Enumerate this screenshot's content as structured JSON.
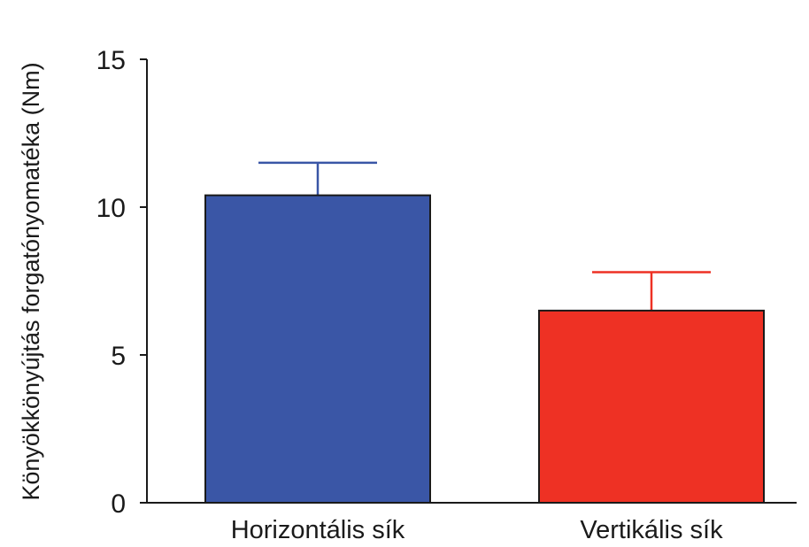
{
  "chart_data": {
    "type": "bar",
    "title": "",
    "xlabel": "",
    "ylabel": "Könyökkönyújtás forgatónyomatéka (Nm)",
    "categories": [
      "Horizontális sík",
      "Vertikális sík"
    ],
    "values": [
      10.4,
      6.5
    ],
    "error": [
      1.1,
      1.3
    ],
    "colors": [
      "#3a56a6",
      "#ee3124"
    ],
    "ylim": [
      0,
      15
    ],
    "yticks": [
      0,
      5,
      10,
      15
    ],
    "grid": false,
    "legend": "none"
  }
}
